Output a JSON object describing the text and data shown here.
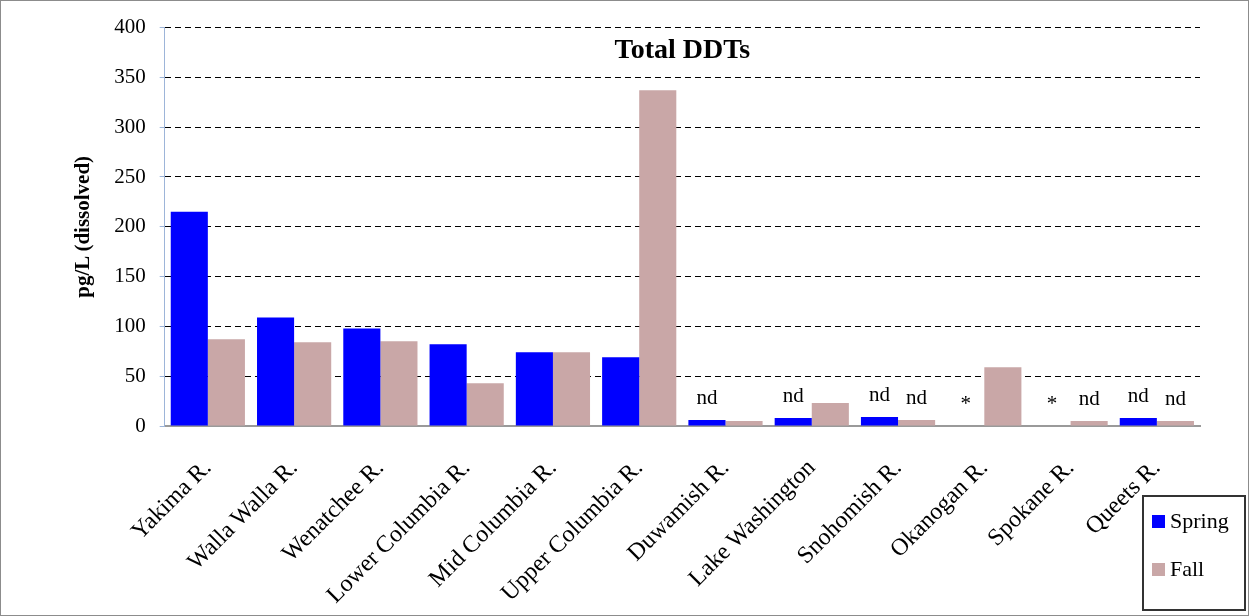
{
  "chart_data": {
    "type": "bar",
    "title": "Total DDTs",
    "ylabel": "pg/L (dissolved)",
    "categories": [
      "Yakima R.",
      "Walla Walla R.",
      "Wenatchee R.",
      "Lower Columbia R.",
      "Mid Columbia R.",
      "Upper Columbia R.",
      "Duwamish R.",
      "Lake Washington",
      "Snohomish R.",
      "Okanogan R.",
      "Spokane R.",
      "Queets R."
    ],
    "series": [
      {
        "name": "Spring",
        "color": "#0000ff",
        "values": [
          215,
          109,
          98,
          82,
          74,
          69,
          6,
          8,
          9,
          null,
          null,
          8
        ],
        "value_labels": [
          null,
          null,
          null,
          null,
          null,
          null,
          "nd",
          "nd",
          "nd",
          "*",
          "*",
          "nd"
        ]
      },
      {
        "name": "Fall",
        "color": "#c9a7a7",
        "values": [
          87,
          84,
          85,
          43,
          74,
          337,
          5,
          23,
          6,
          59,
          5,
          5
        ],
        "value_labels": [
          null,
          null,
          null,
          null,
          null,
          null,
          null,
          null,
          "nd",
          null,
          "nd",
          "nd"
        ]
      }
    ],
    "ylim": [
      0,
      400
    ],
    "yticks": [
      0,
      50,
      100,
      150,
      200,
      250,
      300,
      350,
      400
    ],
    "grid": "y",
    "legend": "bottom right"
  }
}
